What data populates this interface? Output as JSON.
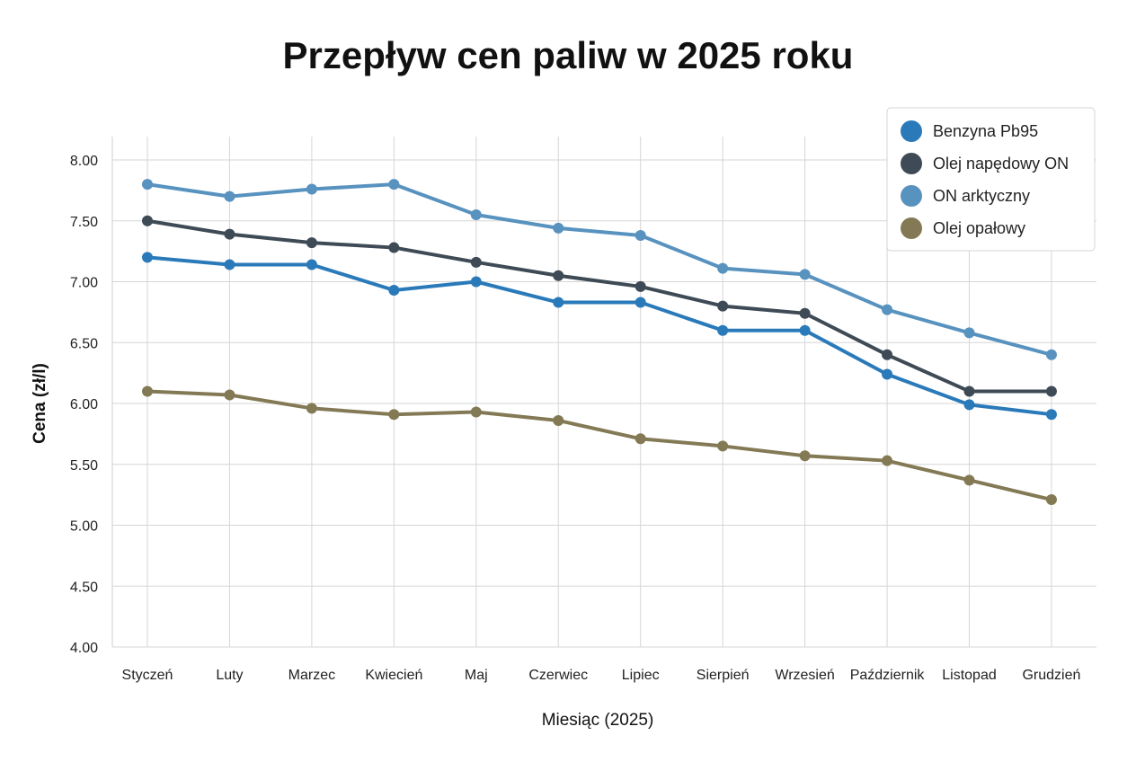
{
  "chart_data": {
    "type": "line",
    "title": "Przepływ cen paliw w 2025 roku",
    "xlabel": "Miesiąc (2025)",
    "ylabel": "Cena (zł/l)",
    "ylim": [
      4.0,
      8.0
    ],
    "yticks": [
      "4.00",
      "4.50",
      "5.00",
      "5.50",
      "6.00",
      "6.50",
      "7.00",
      "7.50",
      "8.00"
    ],
    "ytick_values": [
      4.0,
      4.5,
      5.0,
      5.5,
      6.0,
      6.5,
      7.0,
      7.5,
      8.0
    ],
    "grid": true,
    "legend_position": "top-right",
    "categories": [
      "Styczeń",
      "Luty",
      "Marzec",
      "Kwiecień",
      "Maj",
      "Czerwiec",
      "Lipiec",
      "Sierpień",
      "Wrzesień",
      "Październik",
      "Listopad",
      "Grudzień"
    ],
    "series": [
      {
        "name": "Benzyna Pb95",
        "color": "#2a7aba",
        "values": [
          7.2,
          7.14,
          7.14,
          6.93,
          7.0,
          6.83,
          6.83,
          6.6,
          6.6,
          6.24,
          5.99,
          5.91
        ]
      },
      {
        "name": "Olej napędowy ON",
        "color": "#3e4a55",
        "values": [
          7.5,
          7.39,
          7.32,
          7.28,
          7.16,
          7.05,
          6.96,
          6.8,
          6.74,
          6.4,
          6.1,
          6.1
        ]
      },
      {
        "name": "ON arktyczny",
        "color": "#5892bf",
        "values": [
          7.8,
          7.7,
          7.76,
          7.8,
          7.55,
          7.44,
          7.38,
          7.11,
          7.06,
          6.77,
          6.58,
          6.4
        ]
      },
      {
        "name": "Olej opałowy",
        "color": "#837a55",
        "values": [
          6.1,
          6.07,
          5.96,
          5.91,
          5.93,
          5.86,
          5.71,
          5.65,
          5.57,
          5.53,
          5.37,
          5.21
        ]
      }
    ]
  }
}
